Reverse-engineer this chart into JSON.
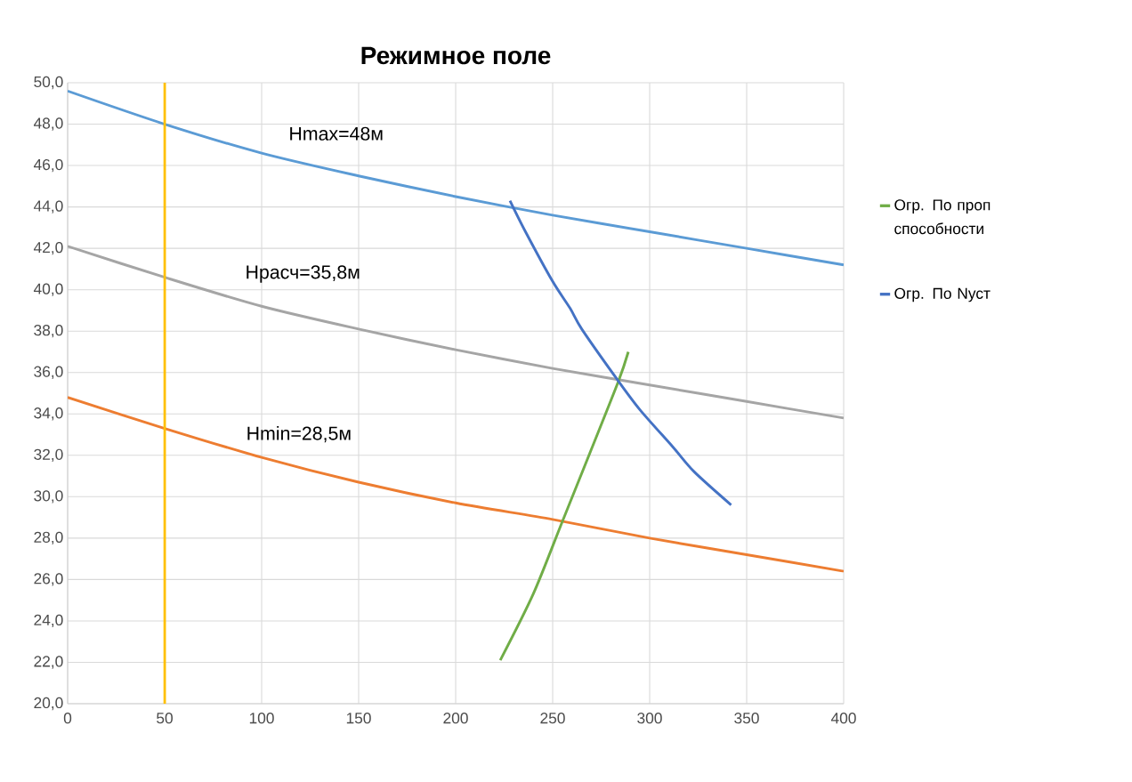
{
  "chart_data": {
    "type": "line",
    "title": "Режимное поле",
    "xlim": [
      0,
      400
    ],
    "xticks": [
      0,
      50,
      100,
      150,
      200,
      250,
      300,
      350,
      400
    ],
    "ylim": [
      20,
      50
    ],
    "yticks": [
      {
        "value": 20,
        "label": "20,0"
      },
      {
        "value": 22,
        "label": "22,0"
      },
      {
        "value": 24,
        "label": "24,0"
      },
      {
        "value": 26,
        "label": "26,0"
      },
      {
        "value": 28,
        "label": "28,0"
      },
      {
        "value": 30,
        "label": "30,0"
      },
      {
        "value": 32,
        "label": "32,0"
      },
      {
        "value": 34,
        "label": "34,0"
      },
      {
        "value": 36,
        "label": "36,0"
      },
      {
        "value": 38,
        "label": "38,0"
      },
      {
        "value": 40,
        "label": "40,0"
      },
      {
        "value": 42,
        "label": "42,0"
      },
      {
        "value": 44,
        "label": "44,0"
      },
      {
        "value": 46,
        "label": "46,0"
      },
      {
        "value": 48,
        "label": "48,0"
      },
      {
        "value": 50,
        "label": "50,0"
      }
    ],
    "grid": true,
    "legend": "right",
    "series": [
      {
        "color": "#5b9bd5",
        "x": [
          0,
          50,
          100,
          150,
          200,
          250,
          300,
          350,
          400
        ],
        "values": [
          49.6,
          48.0,
          46.6,
          45.5,
          44.5,
          43.6,
          42.8,
          42.0,
          41.2
        ]
      },
      {
        "color": "#a5a5a5",
        "x": [
          0,
          50,
          100,
          150,
          200,
          250,
          300,
          350,
          400
        ],
        "values": [
          42.1,
          40.6,
          39.2,
          38.1,
          37.1,
          36.2,
          35.4,
          34.6,
          33.8
        ]
      },
      {
        "color": "#ed7d31",
        "x": [
          0,
          50,
          100,
          150,
          200,
          250,
          300,
          350,
          400
        ],
        "values": [
          34.8,
          33.3,
          31.9,
          30.7,
          29.7,
          28.9,
          28.0,
          27.2,
          26.4
        ]
      },
      {
        "name": "Огр. По проп способности",
        "color": "#70ad47",
        "x": [
          223,
          240,
          255,
          270,
          284,
          289
        ],
        "values": [
          22.1,
          25.3,
          28.8,
          32.3,
          35.6,
          37.0
        ]
      },
      {
        "name": "Огр. По Nуст",
        "color": "#4472c4",
        "x": [
          228,
          236,
          250,
          259,
          265,
          283,
          295,
          312,
          323,
          342
        ],
        "values": [
          44.3,
          42.8,
          40.4,
          39.1,
          38.1,
          35.7,
          34.2,
          32.4,
          31.2,
          29.6
        ]
      }
    ],
    "ref_lines": [
      {
        "axis": "x",
        "value": 50,
        "color": "#ffc000"
      }
    ],
    "annotations": [
      "Hmax=48м",
      "Hрасч=35,8м",
      "Hmin=28,5м"
    ]
  }
}
